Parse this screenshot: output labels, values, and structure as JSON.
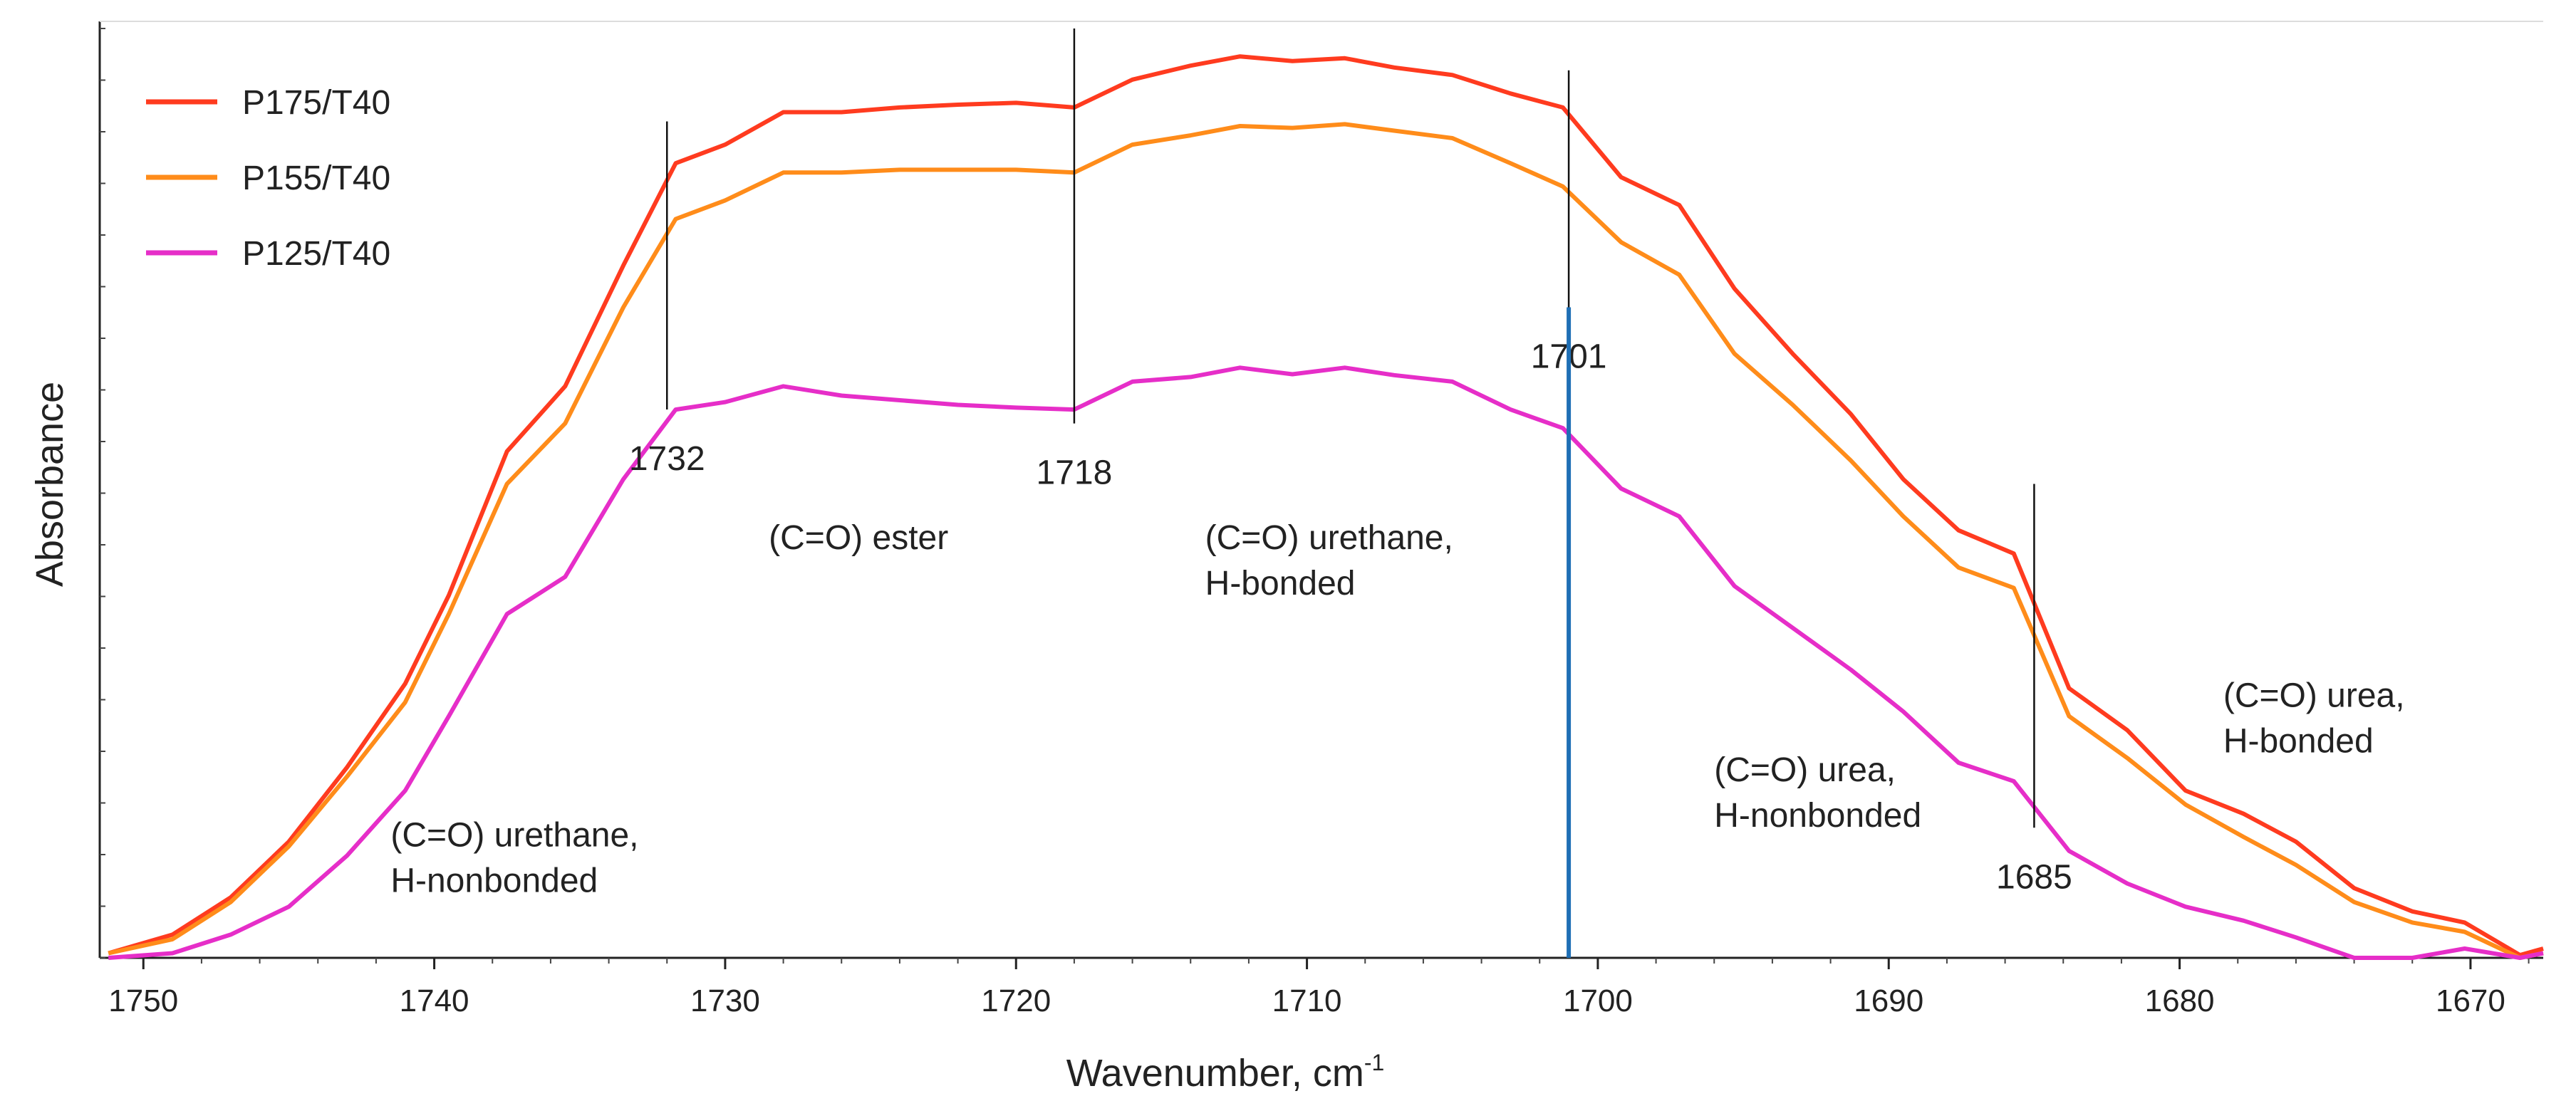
{
  "chart_data": {
    "type": "line",
    "xlabel": "Wavenumber, cm",
    "xlabel_sup": "-1",
    "ylabel": "Absorbance",
    "xlim": [
      1751.5,
      1667.5
    ],
    "ylim": [
      0,
      1.0
    ],
    "x_reversed": true,
    "x_ticks": [
      1750,
      1740,
      1730,
      1720,
      1710,
      1700,
      1690,
      1680,
      1670
    ],
    "grid": false,
    "legend_position": "top-left",
    "series": [
      {
        "name": "P175/T40",
        "color": "#ff3b1f",
        "x": [
          1751.2,
          1749,
          1747,
          1745,
          1743,
          1741,
          1739.5,
          1737.5,
          1735.5,
          1733.5,
          1731.7,
          1730,
          1728,
          1726,
          1724,
          1722,
          1720,
          1718,
          1716,
          1714,
          1712.3,
          1710.5,
          1708.7,
          1707,
          1705,
          1703,
          1701.2,
          1699.2,
          1697.2,
          1695.3,
          1693.3,
          1691.3,
          1689.5,
          1687.6,
          1685.7,
          1683.8,
          1681.8,
          1679.8,
          1677.8,
          1676,
          1674,
          1672,
          1670.2,
          1668.3,
          1667.5
        ],
        "y": [
          0.005,
          0.025,
          0.065,
          0.125,
          0.205,
          0.295,
          0.39,
          0.545,
          0.615,
          0.745,
          0.855,
          0.875,
          0.91,
          0.91,
          0.915,
          0.918,
          0.92,
          0.915,
          0.945,
          0.96,
          0.97,
          0.965,
          0.968,
          0.958,
          0.95,
          0.93,
          0.915,
          0.84,
          0.81,
          0.72,
          0.65,
          0.585,
          0.515,
          0.46,
          0.435,
          0.29,
          0.245,
          0.18,
          0.155,
          0.125,
          0.075,
          0.05,
          0.038,
          0.003,
          0.01
        ]
      },
      {
        "name": "P155/T40",
        "color": "#ff8c1a",
        "x": [
          1751.2,
          1749,
          1747,
          1745,
          1743,
          1741,
          1739.5,
          1737.5,
          1735.5,
          1733.5,
          1731.7,
          1730,
          1728,
          1726,
          1724,
          1722,
          1720,
          1718,
          1716,
          1714,
          1712.3,
          1710.5,
          1708.7,
          1707,
          1705,
          1703,
          1701.2,
          1699.2,
          1697.2,
          1695.3,
          1693.3,
          1691.3,
          1689.5,
          1687.6,
          1685.7,
          1683.8,
          1681.8,
          1679.8,
          1677.8,
          1676,
          1674,
          1672,
          1670.2,
          1668.3,
          1667.5
        ],
        "y": [
          0.005,
          0.02,
          0.06,
          0.12,
          0.195,
          0.275,
          0.37,
          0.51,
          0.575,
          0.7,
          0.795,
          0.815,
          0.845,
          0.845,
          0.848,
          0.848,
          0.848,
          0.845,
          0.875,
          0.885,
          0.895,
          0.893,
          0.897,
          0.89,
          0.882,
          0.855,
          0.83,
          0.77,
          0.735,
          0.65,
          0.595,
          0.535,
          0.475,
          0.42,
          0.398,
          0.26,
          0.215,
          0.165,
          0.13,
          0.1,
          0.06,
          0.038,
          0.028,
          0.0,
          0.005
        ]
      },
      {
        "name": "P125/T40",
        "color": "#e62ec8",
        "x": [
          1751.2,
          1749,
          1747,
          1745,
          1743,
          1741,
          1739.5,
          1737.5,
          1735.5,
          1733.5,
          1731.7,
          1730,
          1728,
          1726,
          1724,
          1722,
          1720,
          1718,
          1716,
          1714,
          1712.3,
          1710.5,
          1708.7,
          1707,
          1705,
          1703,
          1701.2,
          1699.2,
          1697.2,
          1695.3,
          1693.3,
          1691.3,
          1689.5,
          1687.6,
          1685.7,
          1683.8,
          1681.8,
          1679.8,
          1677.8,
          1676,
          1674,
          1672,
          1670.2,
          1668.3,
          1667.5
        ],
        "y": [
          0.0,
          0.005,
          0.025,
          0.055,
          0.11,
          0.18,
          0.26,
          0.37,
          0.41,
          0.515,
          0.59,
          0.598,
          0.615,
          0.605,
          0.6,
          0.595,
          0.592,
          0.59,
          0.62,
          0.625,
          0.635,
          0.628,
          0.635,
          0.627,
          0.62,
          0.59,
          0.57,
          0.505,
          0.475,
          0.4,
          0.355,
          0.31,
          0.265,
          0.21,
          0.19,
          0.115,
          0.08,
          0.055,
          0.04,
          0.022,
          0.0,
          0.0,
          0.01,
          0.0,
          0.005
        ]
      }
    ],
    "peak_markers": [
      {
        "x": 1732,
        "label": "1732",
        "y_bottom": 0.59,
        "y_top": 0.9
      },
      {
        "x": 1718,
        "label": "1718",
        "y_bottom": 0.575,
        "y_top": 1.0
      },
      {
        "x": 1701,
        "label": "1701",
        "y_bottom": 0.7,
        "y_top": 0.955
      },
      {
        "x": 1685,
        "label": "1685",
        "y_bottom": 0.14,
        "y_top": 0.51
      }
    ],
    "highlight_line": {
      "x": 1701,
      "color": "#1f6fb5",
      "y_bottom": 0.0,
      "y_top": 0.7
    },
    "annotations": [
      {
        "lines": [
          "(C=O) urethane,",
          "H-nonbonded"
        ],
        "x": 1741.5,
        "y": 0.12
      },
      {
        "lines": [
          "(C=O) ester"
        ],
        "x": 1728.5,
        "y": 0.44
      },
      {
        "lines": [
          "(C=O) urethane,",
          "H-bonded"
        ],
        "x": 1713.5,
        "y": 0.44
      },
      {
        "lines": [
          "(C=O) urea,",
          "H-nonbonded"
        ],
        "x": 1696,
        "y": 0.19
      },
      {
        "lines": [
          "(C=O) urea,",
          "H-bonded"
        ],
        "x": 1678.5,
        "y": 0.27
      }
    ]
  }
}
